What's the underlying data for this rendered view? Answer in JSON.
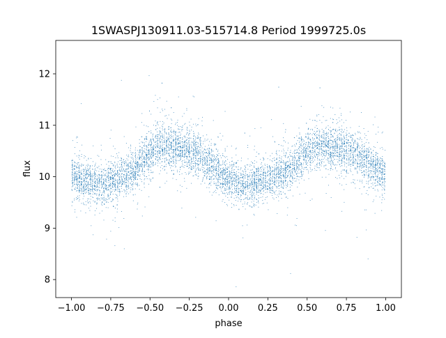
{
  "chart_data": {
    "type": "scatter",
    "title": "1SWASPJ130911.03-515714.8 Period 1999725.0s",
    "xlabel": "phase",
    "ylabel": "flux",
    "xlim": [
      -1.1,
      1.1
    ],
    "ylim": [
      7.65,
      12.65
    ],
    "x_ticks": [
      -1.0,
      -0.75,
      -0.5,
      -0.25,
      0.0,
      0.25,
      0.5,
      0.75,
      1.0
    ],
    "x_tick_labels": [
      "−1.00",
      "−0.75",
      "−0.50",
      "−0.25",
      "0.00",
      "0.25",
      "0.50",
      "0.75",
      "1.00"
    ],
    "y_ticks": [
      8,
      9,
      10,
      11,
      12
    ],
    "y_tick_labels": [
      "8",
      "9",
      "10",
      "11",
      "12"
    ],
    "grid": false,
    "marker_color": "#1f77b4",
    "series": [
      {
        "phase_range": [
          -1.0,
          1.0
        ],
        "mean_flux_profile": {
          "phase": [
            -1.0,
            -0.9,
            -0.8,
            -0.7,
            -0.6,
            -0.5,
            -0.45,
            -0.4,
            -0.3,
            -0.2,
            -0.1,
            0.0,
            0.1,
            0.2,
            0.3,
            0.4,
            0.5,
            0.55,
            0.6,
            0.7,
            0.8,
            0.9,
            1.0
          ],
          "flux": [
            10.0,
            9.9,
            9.85,
            9.95,
            10.15,
            10.45,
            10.6,
            10.6,
            10.55,
            10.45,
            10.2,
            9.95,
            9.85,
            9.9,
            10.0,
            10.2,
            10.5,
            10.6,
            10.6,
            10.55,
            10.45,
            10.25,
            10.05
          ]
        },
        "flux_min": 7.85,
        "flux_max": 12.45,
        "points_shown": "dense point cloud, repeated for phase -1 to 0 and 0 to 1"
      }
    ]
  }
}
